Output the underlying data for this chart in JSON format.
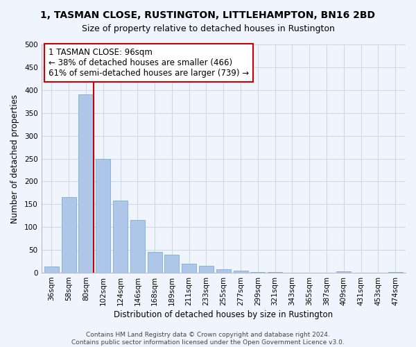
{
  "title": "1, TASMAN CLOSE, RUSTINGTON, LITTLEHAMPTON, BN16 2BD",
  "subtitle": "Size of property relative to detached houses in Rustington",
  "xlabel": "Distribution of detached houses by size in Rustington",
  "ylabel": "Number of detached properties",
  "bar_labels": [
    "36sqm",
    "58sqm",
    "80sqm",
    "102sqm",
    "124sqm",
    "146sqm",
    "168sqm",
    "189sqm",
    "211sqm",
    "233sqm",
    "255sqm",
    "277sqm",
    "299sqm",
    "321sqm",
    "343sqm",
    "365sqm",
    "387sqm",
    "409sqm",
    "431sqm",
    "453sqm",
    "474sqm"
  ],
  "bar_values": [
    14,
    165,
    390,
    250,
    158,
    115,
    45,
    39,
    20,
    15,
    8,
    5,
    2,
    1,
    0,
    0,
    0,
    3,
    0,
    0,
    2
  ],
  "bar_color": "#aec6e8",
  "bar_edge_color": "#7aadd4",
  "vline_color": "#cc0000",
  "annotation_line1": "1 TASMAN CLOSE: 96sqm",
  "annotation_line2": "← 38% of detached houses are smaller (466)",
  "annotation_line3": "61% of semi-detached houses are larger (739) →",
  "annotation_box_color": "#ffffff",
  "annotation_box_edge": "#cc0000",
  "ylim": [
    0,
    500
  ],
  "yticks": [
    0,
    50,
    100,
    150,
    200,
    250,
    300,
    350,
    400,
    450,
    500
  ],
  "grid_color": "#cdd8e8",
  "footer_line1": "Contains HM Land Registry data © Crown copyright and database right 2024.",
  "footer_line2": "Contains public sector information licensed under the Open Government Licence v3.0.",
  "title_fontsize": 10,
  "subtitle_fontsize": 9,
  "axis_label_fontsize": 8.5,
  "tick_fontsize": 7.5,
  "annotation_fontsize": 8.5,
  "footer_fontsize": 6.5,
  "background_color": "#f0f4fc"
}
